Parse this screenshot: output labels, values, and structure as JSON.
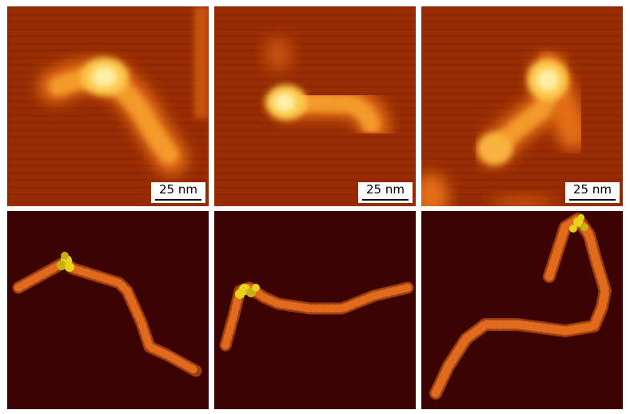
{
  "figure": {
    "afm_panels": [
      {
        "scale_label": "25 nm"
      },
      {
        "scale_label": "25 nm"
      },
      {
        "scale_label": "25 nm"
      }
    ],
    "model_panels": [
      {},
      {},
      {}
    ]
  },
  "colors": {
    "afm_background": "#9a2c03",
    "model_background": "#3d0202",
    "model_fiber": "#d8611a",
    "model_cap": "#e8d21a"
  }
}
